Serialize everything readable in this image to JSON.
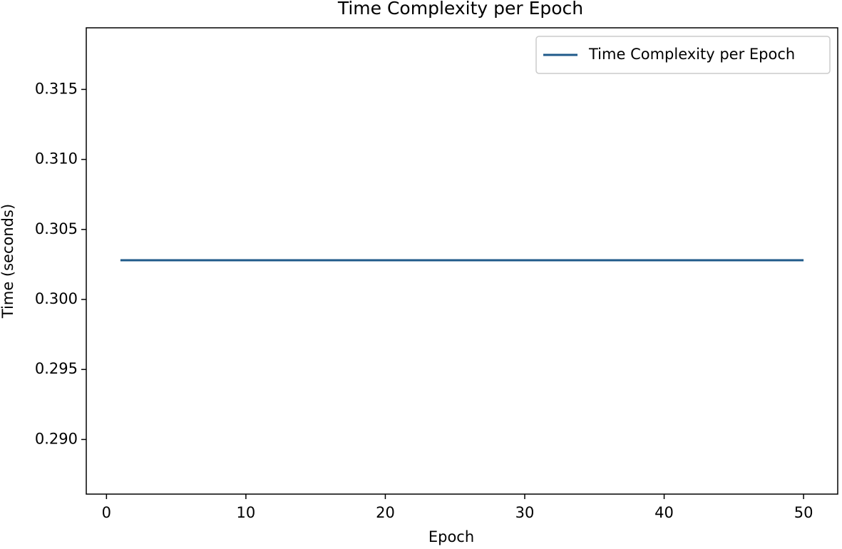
{
  "chart_data": {
    "type": "line",
    "title": "Time Complexity per Epoch",
    "x_label": "Epoch",
    "y_label": "Time (seconds)",
    "x": [
      1,
      2,
      3,
      4,
      5,
      6,
      7,
      8,
      9,
      10,
      11,
      12,
      13,
      14,
      15,
      16,
      17,
      18,
      19,
      20,
      21,
      22,
      23,
      24,
      25,
      26,
      27,
      28,
      29,
      30,
      31,
      32,
      33,
      34,
      35,
      36,
      37,
      38,
      39,
      40,
      41,
      42,
      43,
      44,
      45,
      46,
      47,
      48,
      49,
      50
    ],
    "series": [
      {
        "name": "Time Complexity per Epoch",
        "color": "#1f5a8a",
        "values": [
          0.3028,
          0.3028,
          0.3028,
          0.3028,
          0.3028,
          0.3028,
          0.3028,
          0.3028,
          0.3028,
          0.3028,
          0.3028,
          0.3028,
          0.3028,
          0.3028,
          0.3028,
          0.3028,
          0.3028,
          0.3028,
          0.3028,
          0.3028,
          0.3028,
          0.3028,
          0.3028,
          0.3028,
          0.3028,
          0.3028,
          0.3028,
          0.3028,
          0.3028,
          0.3028,
          0.3028,
          0.3028,
          0.3028,
          0.3028,
          0.3028,
          0.3028,
          0.3028,
          0.3028,
          0.3028,
          0.3028,
          0.3028,
          0.3028,
          0.3028,
          0.3028,
          0.3028,
          0.3028,
          0.3028,
          0.3028,
          0.3028,
          0.3028
        ]
      }
    ],
    "xlim": [
      -1.45,
      52.45
    ],
    "xticks": [
      0,
      10,
      20,
      30,
      40,
      50
    ],
    "ylim": [
      0.2861,
      0.3194
    ],
    "yticks": [
      {
        "value": 0.29,
        "label": "0.290"
      },
      0.295,
      {
        "value": 0.3,
        "label": "0.300"
      },
      0.305,
      {
        "value": 0.31,
        "label": "0.310"
      },
      0.315
    ],
    "legend": "upper right"
  }
}
